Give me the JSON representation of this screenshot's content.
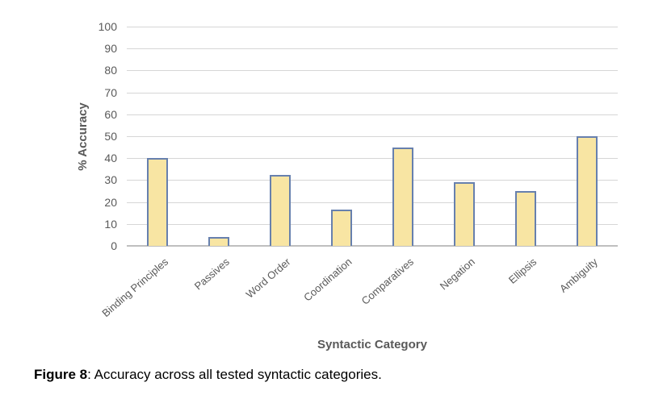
{
  "chart_data": {
    "type": "bar",
    "title": "",
    "xlabel": "Syntactic Category",
    "ylabel": "% Accuracy",
    "categories": [
      "Binding Principles",
      "Passives",
      "Word Order",
      "Coordination",
      "Comparatives",
      "Negation",
      "Ellipsis",
      "Ambiguity"
    ],
    "values": [
      40,
      4,
      32.5,
      16.5,
      45,
      29,
      25,
      50
    ],
    "ylim": [
      0,
      100
    ],
    "ytick_step": 10,
    "grid": "horizontal gridlines on",
    "legend": "none",
    "colors": {
      "bar_fill": "#F8E5A3",
      "bar_border": "#6780AE",
      "gridline": "#D6D6D6",
      "axis_line": "#BFBFBF",
      "tick_label": "#595959",
      "axis_title": "#595959",
      "caption_text": "#000000",
      "background": "#FFFFFF"
    }
  },
  "caption": {
    "label": "Figure 8",
    "text": ": Accuracy across all tested syntactic categories."
  }
}
